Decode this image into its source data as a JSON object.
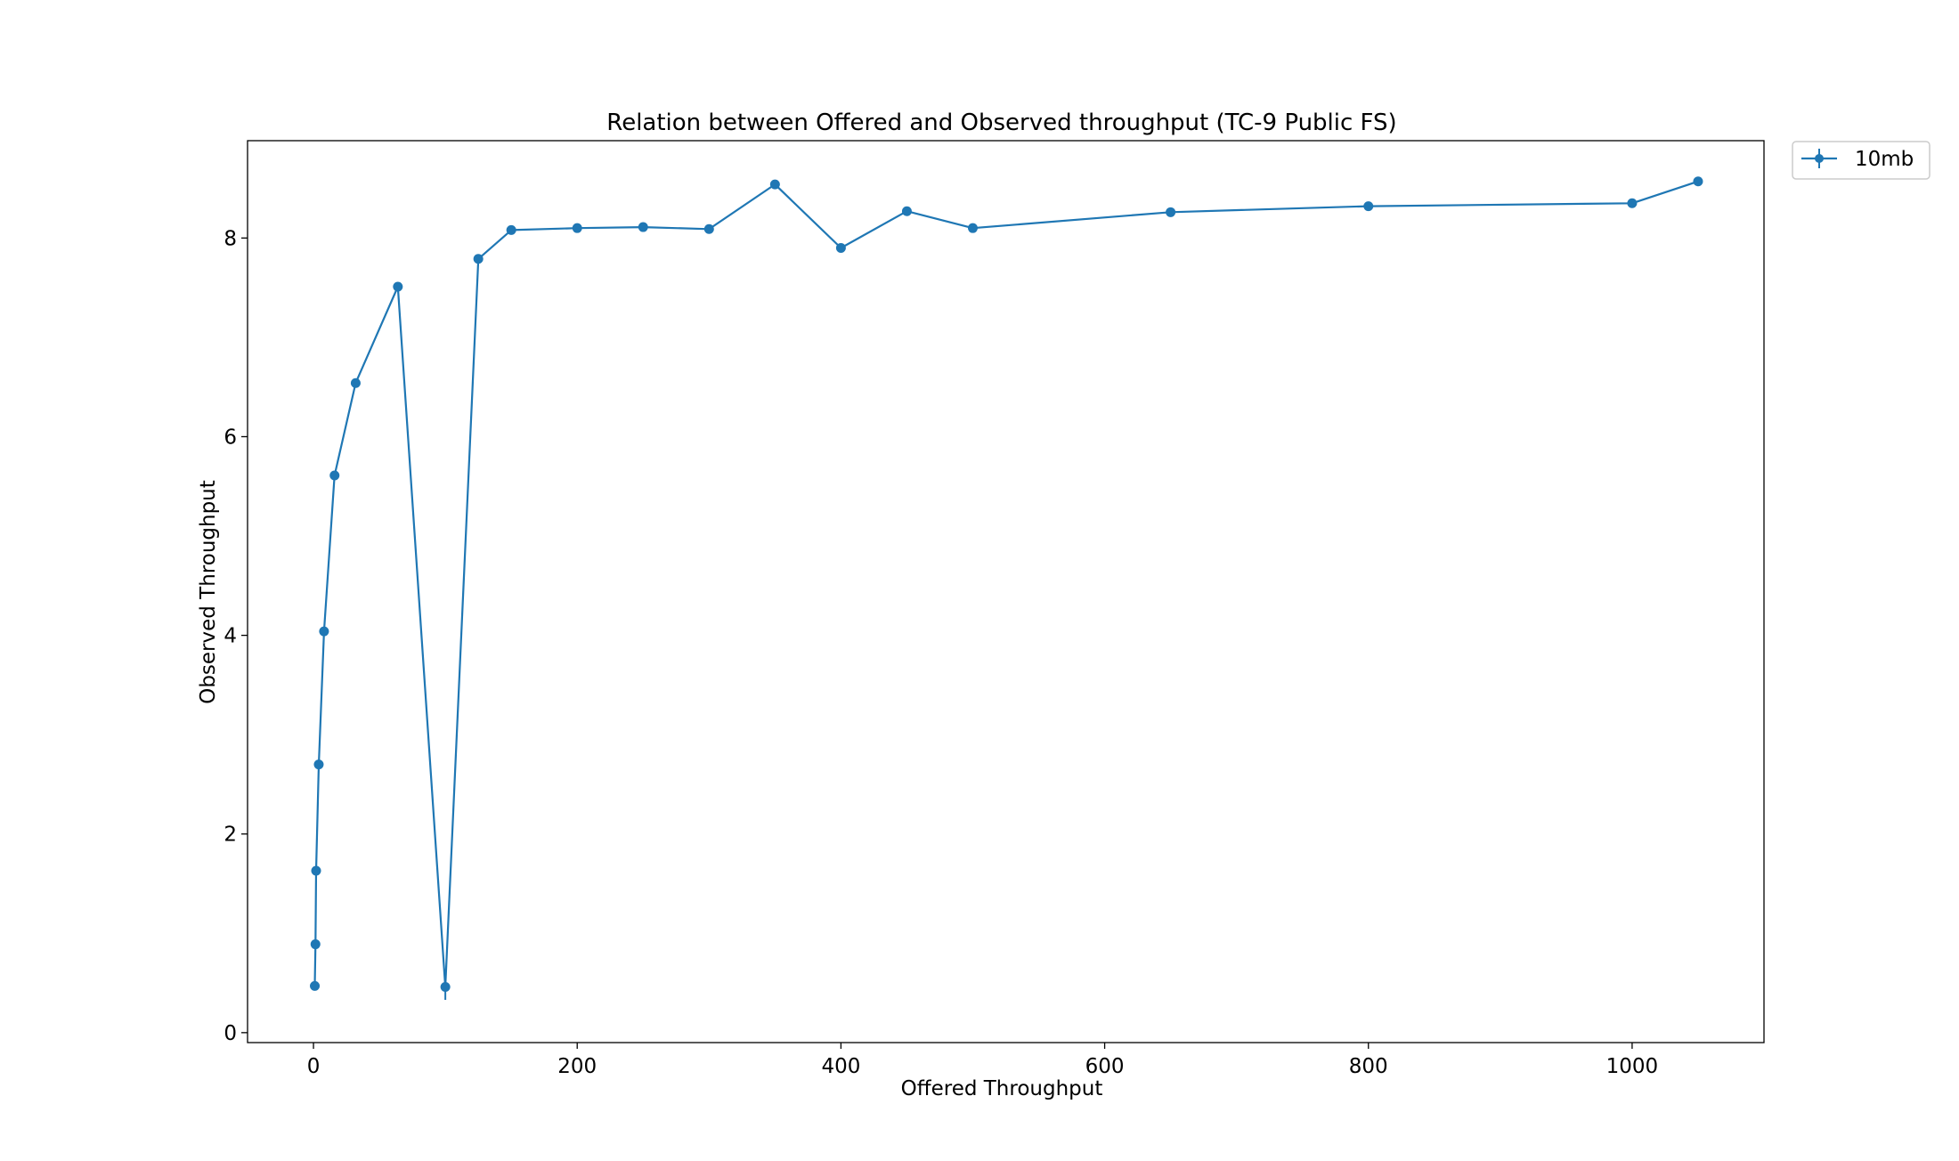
{
  "chart_data": {
    "type": "line",
    "title": "Relation between Offered and Observed throughput (TC-9  Public FS)",
    "xlabel": "Offered Throughput",
    "ylabel": "Observed Throughput",
    "xlim": [
      -50,
      1100
    ],
    "ylim": [
      -0.1,
      8.98
    ],
    "x_ticks": [
      0,
      200,
      400,
      600,
      800,
      1000
    ],
    "y_ticks": [
      0,
      2,
      4,
      6,
      8
    ],
    "grid": false,
    "legend_position": "outside-top-right",
    "series": [
      {
        "name": "10mb",
        "color": "#1f77b4",
        "marker": "circle",
        "error_bars": true,
        "x": [
          1,
          1.5,
          2,
          4,
          8,
          16,
          32,
          64,
          100,
          125,
          150,
          200,
          250,
          300,
          350,
          400,
          450,
          500,
          650,
          800,
          1000,
          1050
        ],
        "y": [
          0.47,
          0.89,
          1.63,
          2.7,
          4.04,
          5.61,
          6.54,
          7.51,
          0.46,
          7.79,
          8.08,
          8.1,
          8.11,
          8.09,
          8.54,
          7.9,
          8.27,
          8.1,
          8.26,
          8.32,
          8.35,
          8.57
        ],
        "yerr": [
          0,
          0,
          0,
          0,
          0,
          0,
          0,
          0,
          0.13,
          0,
          0,
          0,
          0,
          0,
          0,
          0,
          0,
          0,
          0,
          0,
          0,
          0
        ]
      }
    ]
  }
}
